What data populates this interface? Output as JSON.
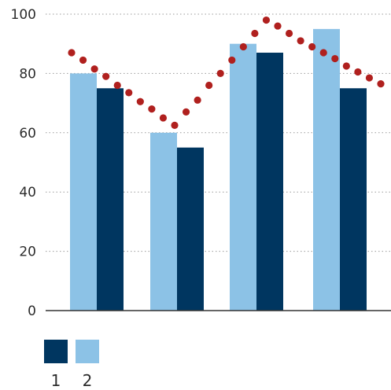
{
  "chart_data": {
    "type": "bar",
    "title": "",
    "xlabel": "",
    "ylabel": "",
    "ylim": [
      0,
      100
    ],
    "yticks": [
      0,
      20,
      40,
      60,
      80,
      100
    ],
    "grid": "horizontal-dotted",
    "groups": 4,
    "series": [
      {
        "name": "2",
        "color": "#8cc2e6",
        "values": [
          80,
          60,
          90,
          95
        ]
      },
      {
        "name": "1",
        "color": "#003660",
        "values": [
          75,
          55,
          87,
          75
        ]
      }
    ],
    "dotted_line": {
      "color": "#b0201e",
      "values": [
        87,
        84.5,
        81.5,
        79,
        76,
        73.5,
        70.5,
        68,
        65,
        62.5,
        67,
        71,
        76,
        80,
        84.5,
        89,
        93.5,
        98,
        96,
        93.5,
        91,
        89,
        87,
        85,
        82.5,
        80.5,
        78.5,
        76.5
      ]
    },
    "legend": {
      "position": "bottom-left",
      "items": [
        {
          "label": "1",
          "color": "#003660"
        },
        {
          "label": "2",
          "color": "#8cc2e6"
        }
      ]
    }
  }
}
